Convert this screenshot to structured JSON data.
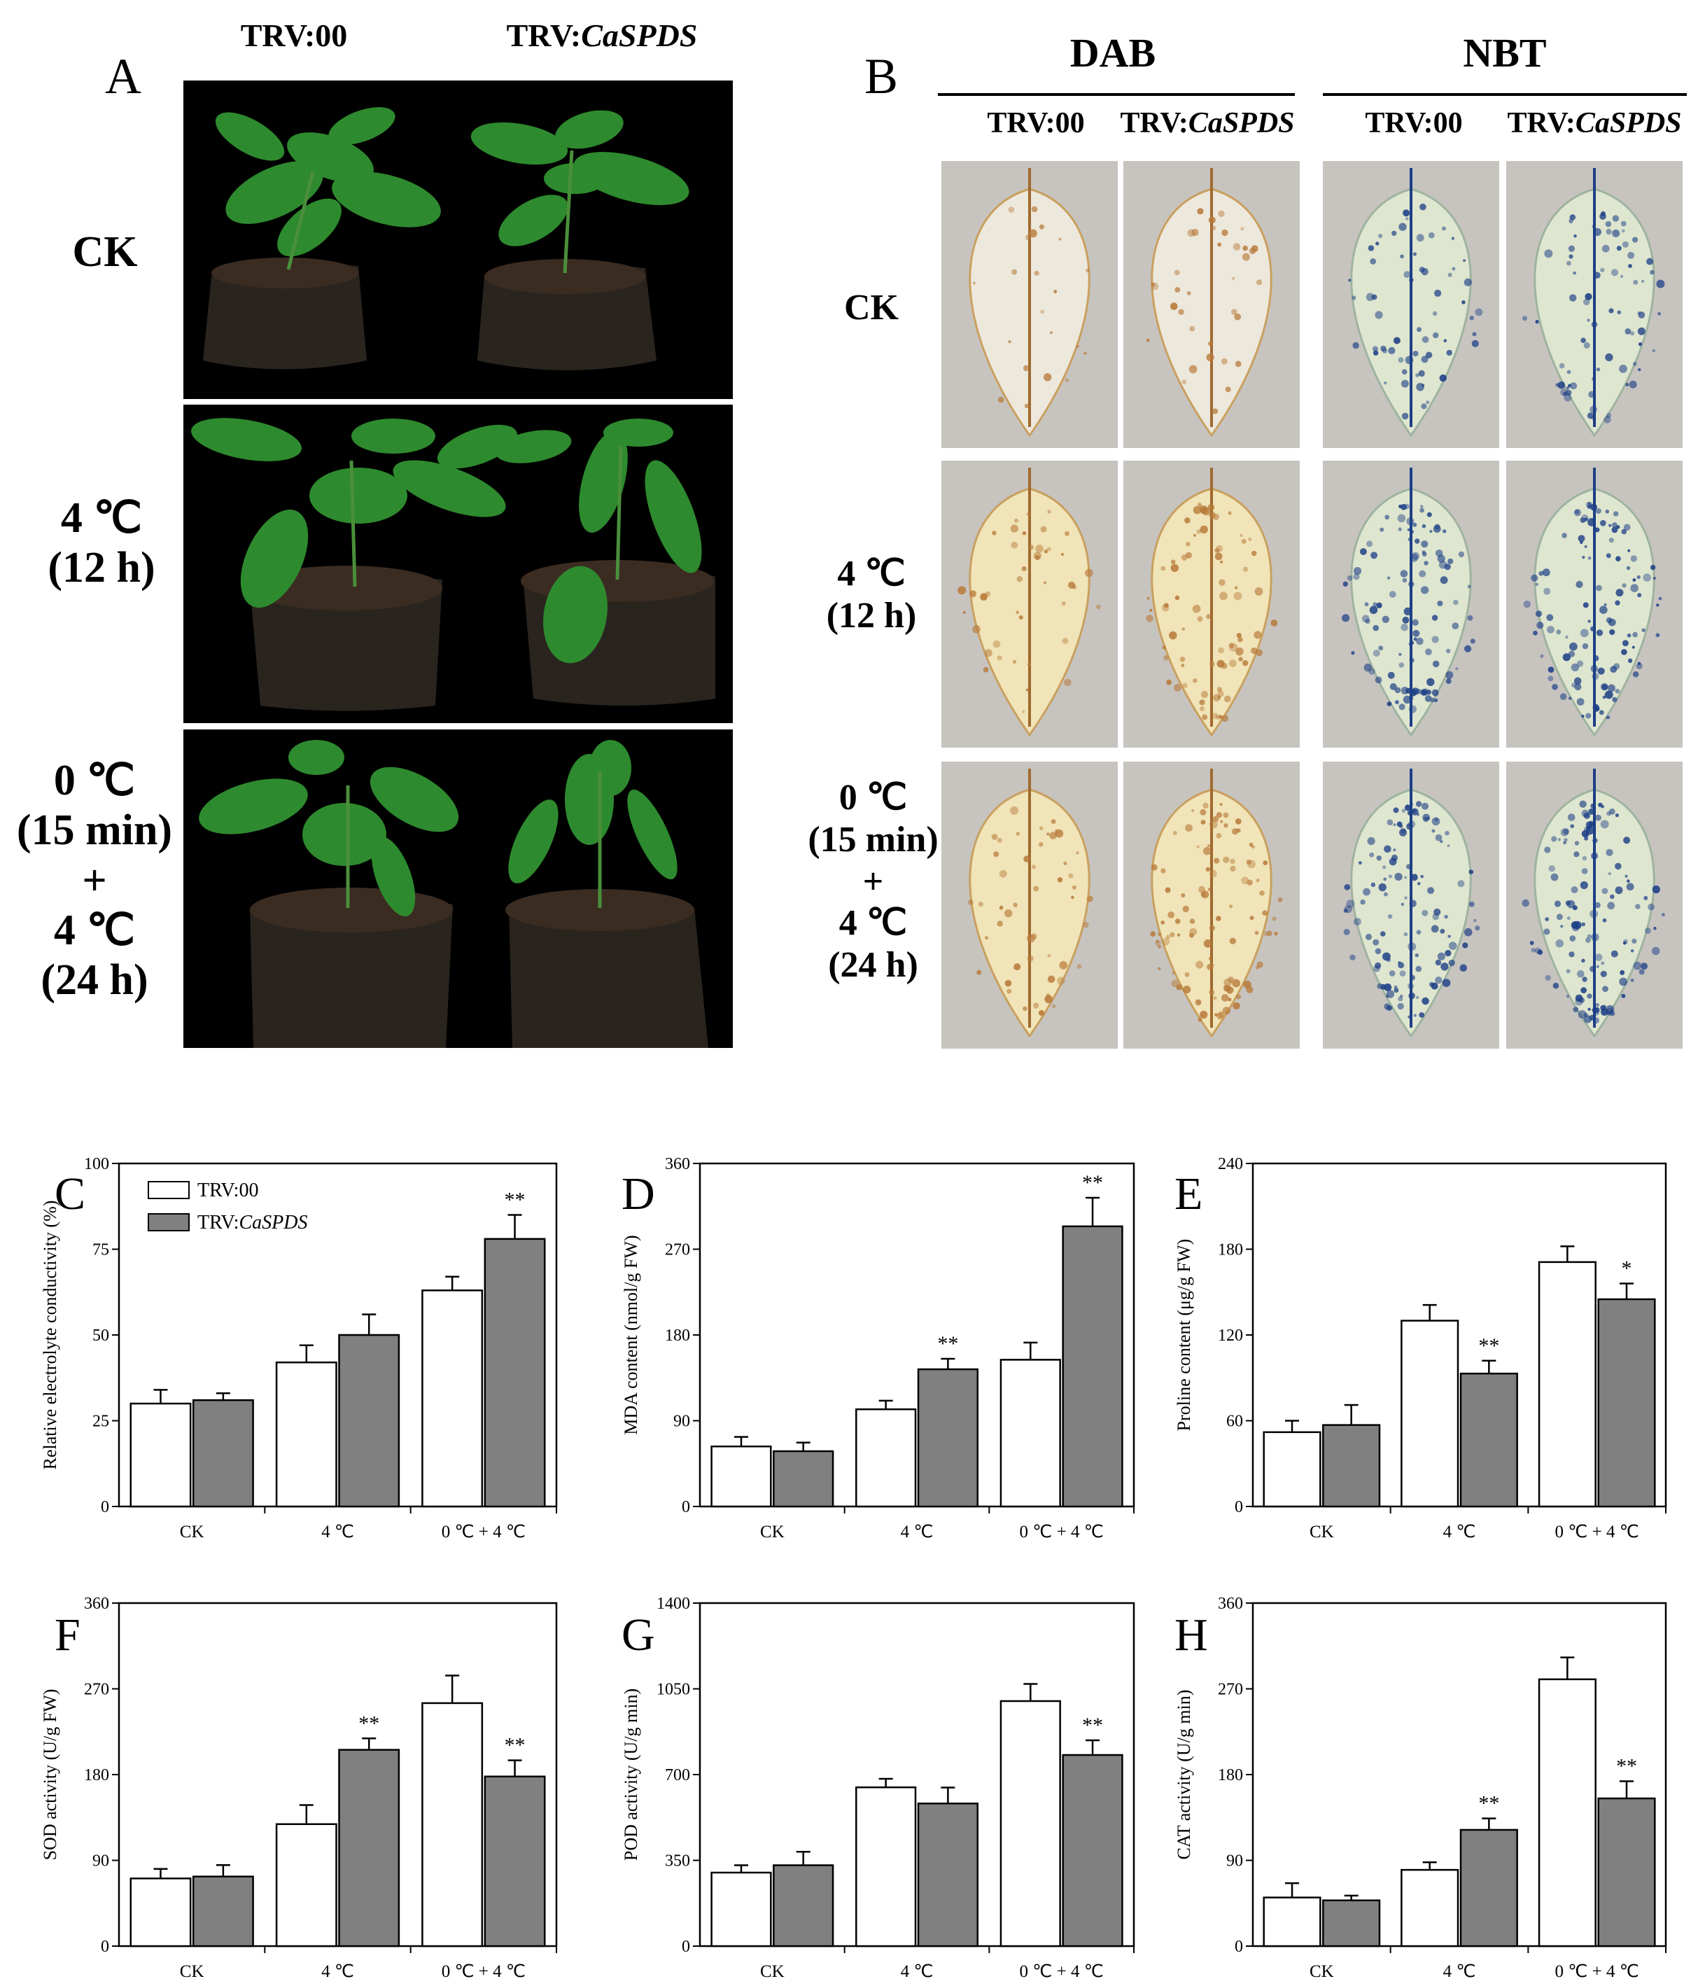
{
  "panel_a": {
    "letter": "A",
    "col1": "TRV:00",
    "col2_prefix": "TRV:",
    "col2_gene": "CaSPDS",
    "rows": [
      {
        "lines": [
          "CK"
        ]
      },
      {
        "lines": [
          "4 ℃",
          "(12 h)"
        ]
      },
      {
        "lines": [
          "0 ℃",
          "(15 min)",
          "+",
          "4 ℃",
          "(24 h)"
        ]
      }
    ]
  },
  "panel_b": {
    "letter": "B",
    "group1": "DAB",
    "group2": "NBT",
    "col1": "TRV:00",
    "col2_prefix": "TRV:",
    "col2_gene": "CaSPDS",
    "rows": [
      {
        "lines": [
          "CK"
        ]
      },
      {
        "lines": [
          "4 ℃",
          "(12 h)"
        ]
      },
      {
        "lines": [
          "0 ℃",
          "(15 min)",
          "+",
          "4 ℃",
          "(24 h)"
        ]
      }
    ]
  },
  "legend": {
    "s1": "TRV:00",
    "s2_prefix": "TRV:",
    "s2_gene": "CaSPDS"
  },
  "colors": {
    "trv00": "#ffffff",
    "trvcaspds": "#808080",
    "dab_stain": "#b87a3a",
    "nbt_stain": "#1d3f86",
    "leaf_bg": "#c7c4c0"
  },
  "chart_data": [
    {
      "letter": "C",
      "type": "bar",
      "ylabel": "Relative electrolyte conductivity (%)",
      "categories": [
        "CK",
        "4 ℃",
        "0 ℃ + 4 ℃"
      ],
      "yticks": [
        "0",
        "25",
        "50",
        "75",
        "100"
      ],
      "ylim": [
        0,
        100
      ],
      "series": [
        {
          "name": "TRV:00",
          "values": [
            30,
            42,
            63
          ],
          "errors": [
            4,
            5,
            4
          ]
        },
        {
          "name": "TRV:CaSPDS",
          "values": [
            31,
            50,
            78
          ],
          "errors": [
            2,
            6,
            7
          ]
        }
      ],
      "significance": [
        [
          "",
          "",
          ""
        ],
        [
          "",
          "",
          "**"
        ]
      ]
    },
    {
      "letter": "D",
      "type": "bar",
      "ylabel": "MDA content (nmol/g FW)",
      "categories": [
        "CK",
        "4 ℃",
        "0 ℃ + 4 ℃"
      ],
      "yticks": [
        "0",
        "90",
        "180",
        "270",
        "360"
      ],
      "ylim": [
        0,
        360
      ],
      "series": [
        {
          "name": "TRV:00",
          "values": [
            63,
            102,
            154
          ],
          "errors": [
            10,
            9,
            18
          ]
        },
        {
          "name": "TRV:CaSPDS",
          "values": [
            58,
            144,
            294
          ],
          "errors": [
            9,
            11,
            30
          ]
        }
      ],
      "significance": [
        [
          "",
          "",
          ""
        ],
        [
          "",
          "**",
          "**"
        ]
      ]
    },
    {
      "letter": "E",
      "type": "bar",
      "ylabel": "Proline content (μg/g FW)",
      "categories": [
        "CK",
        "4 ℃",
        "0 ℃ + 4 ℃"
      ],
      "yticks": [
        "0",
        "60",
        "120",
        "180",
        "240"
      ],
      "ylim": [
        0,
        240
      ],
      "series": [
        {
          "name": "TRV:00",
          "values": [
            52,
            130,
            171
          ],
          "errors": [
            8,
            11,
            11
          ]
        },
        {
          "name": "TRV:CaSPDS",
          "values": [
            57,
            93,
            145
          ],
          "errors": [
            14,
            9,
            11
          ]
        }
      ],
      "significance": [
        [
          "",
          "",
          ""
        ],
        [
          "",
          "**",
          "*"
        ]
      ]
    },
    {
      "letter": "F",
      "type": "bar",
      "ylabel": "SOD activity (U/g FW)",
      "categories": [
        "CK",
        "4 ℃",
        "0 ℃ + 4 ℃"
      ],
      "yticks": [
        "0",
        "90",
        "180",
        "270",
        "360"
      ],
      "ylim": [
        0,
        360
      ],
      "series": [
        {
          "name": "TRV:00",
          "values": [
            71,
            128,
            255
          ],
          "errors": [
            10,
            20,
            29
          ]
        },
        {
          "name": "TRV:CaSPDS",
          "values": [
            73,
            206,
            178
          ],
          "errors": [
            12,
            12,
            17
          ]
        }
      ],
      "significance": [
        [
          "",
          "",
          ""
        ],
        [
          "",
          "**",
          "**"
        ]
      ]
    },
    {
      "letter": "G",
      "type": "bar",
      "ylabel": "POD activity (U/g min)",
      "categories": [
        "CK",
        "4 ℃",
        "0 ℃ + 4 ℃"
      ],
      "yticks": [
        "0",
        "350",
        "700",
        "1050",
        "1400"
      ],
      "ylim": [
        0,
        1400
      ],
      "series": [
        {
          "name": "TRV:00",
          "values": [
            300,
            648,
            1000
          ],
          "errors": [
            30,
            35,
            70
          ]
        },
        {
          "name": "TRV:CaSPDS",
          "values": [
            330,
            582,
            780
          ],
          "errors": [
            55,
            65,
            60
          ]
        }
      ],
      "significance": [
        [
          "",
          "",
          ""
        ],
        [
          "",
          "",
          "**"
        ]
      ]
    },
    {
      "letter": "H",
      "type": "bar",
      "ylabel": "CAT activity (U/g min)",
      "categories": [
        "CK",
        "4 ℃",
        "0 ℃ + 4 ℃"
      ],
      "yticks": [
        "0",
        "90",
        "180",
        "270",
        "360"
      ],
      "ylim": [
        0,
        360
      ],
      "series": [
        {
          "name": "TRV:00",
          "values": [
            51,
            80,
            280
          ],
          "errors": [
            15,
            8,
            23
          ]
        },
        {
          "name": "TRV:CaSPDS",
          "values": [
            48,
            122,
            155
          ],
          "errors": [
            5,
            12,
            18
          ]
        }
      ],
      "significance": [
        [
          "",
          "",
          ""
        ],
        [
          "",
          "**",
          "**"
        ]
      ]
    }
  ]
}
